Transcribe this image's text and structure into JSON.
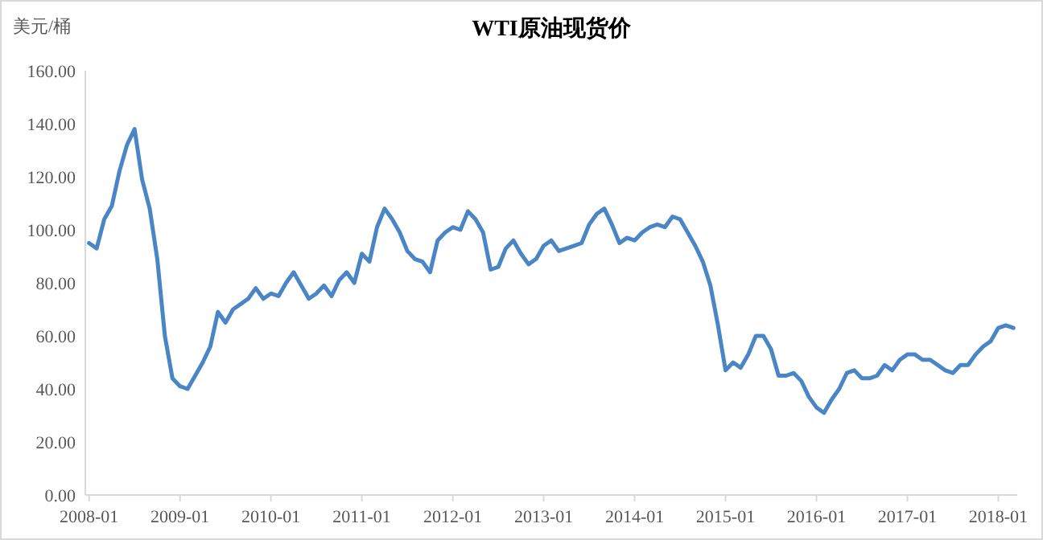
{
  "chart_data": {
    "type": "line",
    "title": "WTI原油现货价",
    "ylabel": "美元/桶",
    "categories": [
      "2008-01",
      null,
      null,
      null,
      null,
      null,
      null,
      null,
      null,
      null,
      null,
      null,
      "2009-01",
      null,
      null,
      null,
      null,
      null,
      null,
      null,
      null,
      null,
      null,
      null,
      "2010-01",
      null,
      null,
      null,
      null,
      null,
      null,
      null,
      null,
      null,
      null,
      null,
      "2011-01",
      null,
      null,
      null,
      null,
      null,
      null,
      null,
      null,
      null,
      null,
      null,
      "2012-01",
      null,
      null,
      null,
      null,
      null,
      null,
      null,
      null,
      null,
      null,
      null,
      "2013-01",
      null,
      null,
      null,
      null,
      null,
      null,
      null,
      null,
      null,
      null,
      null,
      "2014-01",
      null,
      null,
      null,
      null,
      null,
      null,
      null,
      null,
      null,
      null,
      null,
      "2015-01",
      null,
      null,
      null,
      null,
      null,
      null,
      null,
      null,
      null,
      null,
      null,
      "2016-01",
      null,
      null,
      null,
      null,
      null,
      null,
      null,
      null,
      null,
      null,
      null,
      "2017-01",
      null,
      null,
      null,
      null,
      null,
      null,
      null,
      null,
      null,
      null,
      null,
      "2018-01",
      null,
      null
    ],
    "series": [
      {
        "color": "#4a86c5",
        "values": [
          95,
          93,
          104,
          109,
          122,
          132,
          138,
          119,
          108,
          89,
          60,
          44,
          41,
          40,
          45,
          50,
          56,
          69,
          65,
          70,
          72,
          74,
          78,
          74,
          76,
          75,
          80,
          84,
          79,
          74,
          76,
          79,
          75,
          81,
          84,
          80,
          91,
          88,
          101,
          108,
          104,
          99,
          92,
          89,
          88,
          84,
          96,
          99,
          101,
          100,
          107,
          104,
          99,
          85,
          86,
          93,
          96,
          91,
          87,
          89,
          94,
          96,
          92,
          93,
          94,
          95,
          102,
          106,
          108,
          102,
          95,
          97,
          96,
          99,
          101,
          102,
          101,
          105,
          104,
          99,
          94,
          88,
          79,
          64,
          47,
          50,
          48,
          53,
          60,
          60,
          55,
          45,
          45,
          46,
          43,
          37,
          33,
          31,
          36,
          40,
          46,
          47,
          44,
          44,
          45,
          49,
          47,
          51,
          53,
          53,
          51,
          51,
          49,
          47,
          46,
          49,
          49,
          53,
          56,
          58,
          63,
          64,
          63
        ]
      }
    ],
    "ylim": [
      0,
      160
    ],
    "yticks": [
      {
        "value": 0,
        "label": "0.00"
      },
      {
        "value": 20,
        "label": "20.00"
      },
      {
        "value": 40,
        "label": "40.00"
      },
      {
        "value": 60,
        "label": "60.00"
      },
      {
        "value": 80,
        "label": "80.00"
      },
      {
        "value": 100,
        "label": "100.00"
      },
      {
        "value": 120,
        "label": "120.00"
      },
      {
        "value": 140,
        "label": "140.00"
      },
      {
        "value": 160,
        "label": "160.00"
      }
    ],
    "grid": false,
    "marker": "none",
    "line_style": "solid"
  }
}
